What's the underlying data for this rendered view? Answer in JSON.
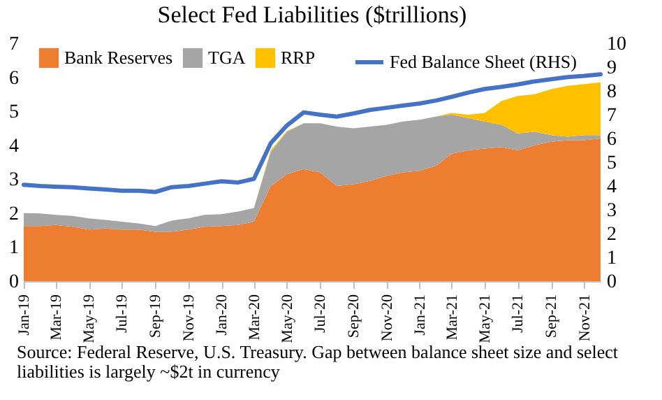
{
  "chart_data": {
    "type": "area",
    "title": "Select Fed Liabilities ($trillions)",
    "x": [
      "2019-01",
      "2019-02",
      "2019-03",
      "2019-04",
      "2019-05",
      "2019-06",
      "2019-07",
      "2019-08",
      "2019-09",
      "2019-10",
      "2019-11",
      "2019-12",
      "2020-01",
      "2020-02",
      "2020-03",
      "2020-04",
      "2020-05",
      "2020-06",
      "2020-07",
      "2020-08",
      "2020-09",
      "2020-10",
      "2020-11",
      "2020-12",
      "2021-01",
      "2021-02",
      "2021-03",
      "2021-04",
      "2021-05",
      "2021-06",
      "2021-07",
      "2021-08",
      "2021-09",
      "2021-10",
      "2021-11",
      "2021-12"
    ],
    "stacked": true,
    "series": [
      {
        "name": "Bank Reserves",
        "color": "#ed7d31",
        "values": [
          1.62,
          1.62,
          1.65,
          1.6,
          1.52,
          1.55,
          1.52,
          1.52,
          1.45,
          1.45,
          1.52,
          1.6,
          1.62,
          1.65,
          1.75,
          2.8,
          3.15,
          3.3,
          3.2,
          2.8,
          2.85,
          2.95,
          3.1,
          3.2,
          3.25,
          3.4,
          3.75,
          3.85,
          3.9,
          3.95,
          3.85,
          4.0,
          4.1,
          4.15,
          4.15,
          4.2
        ]
      },
      {
        "name": "TGA",
        "color": "#a5a5a5",
        "values": [
          0.38,
          0.37,
          0.3,
          0.32,
          0.33,
          0.25,
          0.23,
          0.18,
          0.17,
          0.33,
          0.33,
          0.35,
          0.35,
          0.4,
          0.4,
          1.0,
          1.25,
          1.35,
          1.45,
          1.75,
          1.65,
          1.6,
          1.5,
          1.5,
          1.5,
          1.45,
          1.15,
          0.95,
          0.8,
          0.65,
          0.5,
          0.4,
          0.2,
          0.1,
          0.15,
          0.1
        ]
      },
      {
        "name": "RRP",
        "color": "#ffc000",
        "values": [
          0,
          0,
          0,
          0,
          0,
          0,
          0,
          0,
          0,
          0,
          0,
          0,
          0,
          0,
          0,
          0.05,
          0.02,
          0,
          0,
          0,
          0,
          0,
          0,
          0,
          0,
          0,
          0.05,
          0.1,
          0.25,
          0.7,
          1.1,
          1.1,
          1.35,
          1.5,
          1.5,
          1.55
        ]
      },
      {
        "name": "Fed Balance Sheet (RHS)",
        "type": "line",
        "axis": "y2",
        "color": "#4472c4",
        "values": [
          4.05,
          4.0,
          3.97,
          3.95,
          3.9,
          3.85,
          3.8,
          3.8,
          3.75,
          3.95,
          4.0,
          4.1,
          4.2,
          4.15,
          4.3,
          5.8,
          6.55,
          7.1,
          7.0,
          6.92,
          7.05,
          7.2,
          7.29,
          7.38,
          7.47,
          7.6,
          7.75,
          7.93,
          8.08,
          8.17,
          8.27,
          8.4,
          8.49,
          8.58,
          8.63,
          8.7
        ]
      }
    ],
    "xlim": [
      "2019-01",
      "2021-12"
    ],
    "xticks": [
      {
        "value": "2019-01",
        "label": "Jan-19"
      },
      {
        "value": "2019-03",
        "label": "Mar-19"
      },
      {
        "value": "2019-05",
        "label": "May-19"
      },
      {
        "value": "2019-07",
        "label": "Jul-19"
      },
      {
        "value": "2019-09",
        "label": "Sep-19"
      },
      {
        "value": "2019-11",
        "label": "Nov-19"
      },
      {
        "value": "2020-01",
        "label": "Jan-20"
      },
      {
        "value": "2020-03",
        "label": "Mar-20"
      },
      {
        "value": "2020-05",
        "label": "May-20"
      },
      {
        "value": "2020-07",
        "label": "Jul-20"
      },
      {
        "value": "2020-09",
        "label": "Sep-20"
      },
      {
        "value": "2020-11",
        "label": "Nov-20"
      },
      {
        "value": "2021-01",
        "label": "Jan-21"
      },
      {
        "value": "2021-03",
        "label": "Mar-21"
      },
      {
        "value": "2021-05",
        "label": "May-21"
      },
      {
        "value": "2021-07",
        "label": "Jul-21"
      },
      {
        "value": "2021-09",
        "label": "Sep-21"
      },
      {
        "value": "2021-11",
        "label": "Nov-21"
      }
    ],
    "ylim": [
      0,
      7
    ],
    "yticks": [
      0,
      1,
      2,
      3,
      4,
      5,
      6,
      7
    ],
    "y2lim": [
      0,
      10
    ],
    "y2ticks": [
      0,
      1,
      2,
      3,
      4,
      5,
      6,
      7,
      8,
      9,
      10
    ],
    "legend": "top",
    "grid": false,
    "annotations": [
      "Source: Federal Reserve, U.S. Treasury. Gap between balance sheet size and select liabilities is largely ~$2t in currency"
    ]
  }
}
